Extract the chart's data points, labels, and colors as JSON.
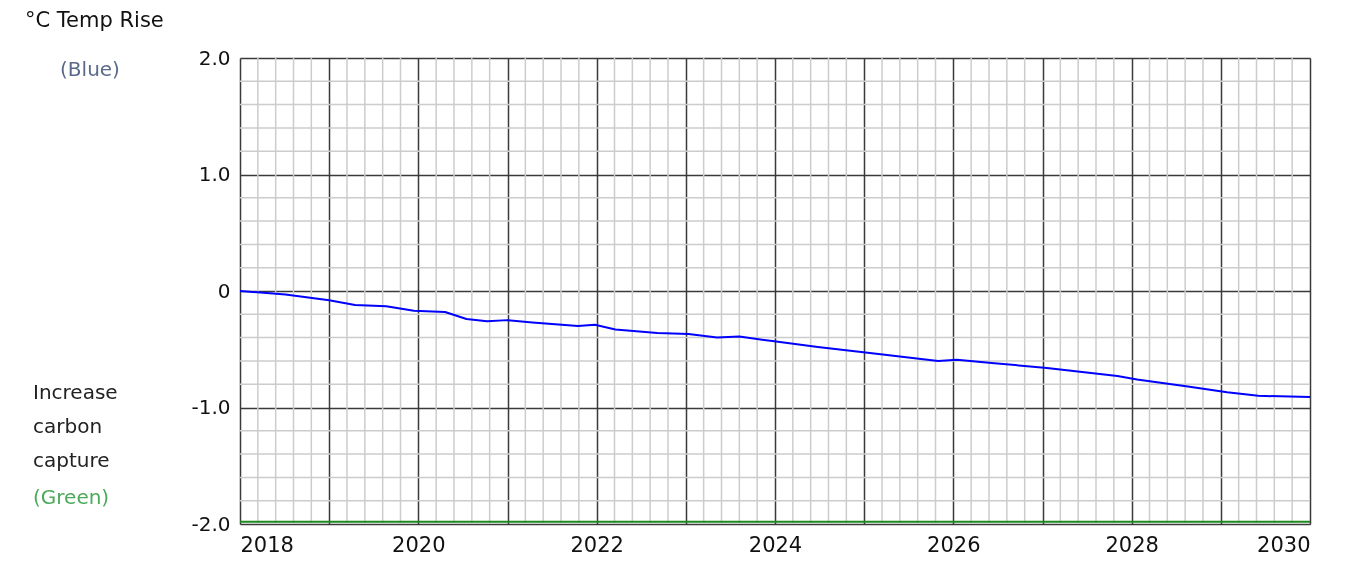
{
  "chart_data": {
    "type": "line",
    "ylabel": "°C Temp Rise",
    "annotations": [
      "(Blue)",
      "Increase carbon capture",
      "(Green)"
    ],
    "xlim": [
      2018,
      2030
    ],
    "xticks": [
      2018,
      {
        "value": 2019,
        "label": null
      },
      2020,
      {
        "value": 2021,
        "label": null
      },
      2022,
      {
        "value": 2023,
        "label": null
      },
      2024,
      {
        "value": 2025,
        "label": null
      },
      2026,
      {
        "value": 2027,
        "label": null
      },
      2028,
      {
        "value": 2029,
        "label": null
      },
      2030
    ],
    "ylim": [
      -2,
      2
    ],
    "yticks": [
      {
        "value": -2,
        "label": "-2.0"
      },
      {
        "value": -1,
        "label": "-1.0"
      },
      0,
      {
        "value": 1,
        "label": "1.0"
      },
      {
        "value": 2,
        "label": "2.0"
      }
    ],
    "grid": true,
    "series": [
      {
        "color": "#0000ff",
        "x": [
          2018.0,
          2018.51,
          2019.0,
          2019.29,
          2019.64,
          2019.95,
          2020.3,
          2020.54,
          2020.77,
          2021.0,
          2021.28,
          2021.79,
          2021.98,
          2022.21,
          2022.68,
          2023.03,
          2023.35,
          2023.6,
          2023.97,
          2024.48,
          2025.04,
          2025.83,
          2026.04,
          2026.46,
          2027.05,
          2027.84,
          2028.06,
          2028.63,
          2029.07,
          2029.42,
          2030.0
        ],
        "values": [
          0,
          -0.03,
          -0.08,
          -0.12,
          -0.13,
          -0.17,
          -0.18,
          -0.24,
          -0.26,
          -0.25,
          -0.27,
          -0.3,
          -0.29,
          -0.33,
          -0.36,
          -0.37,
          -0.4,
          -0.39,
          -0.43,
          -0.48,
          -0.53,
          -0.6,
          -0.59,
          -0.62,
          -0.66,
          -0.73,
          -0.76,
          -0.82,
          -0.87,
          -0.9,
          -0.91
        ]
      },
      {
        "color": "#1e8a1e",
        "x": [
          2018.0,
          2030.0
        ],
        "values": [
          -1.98,
          -1.98
        ]
      }
    ]
  }
}
